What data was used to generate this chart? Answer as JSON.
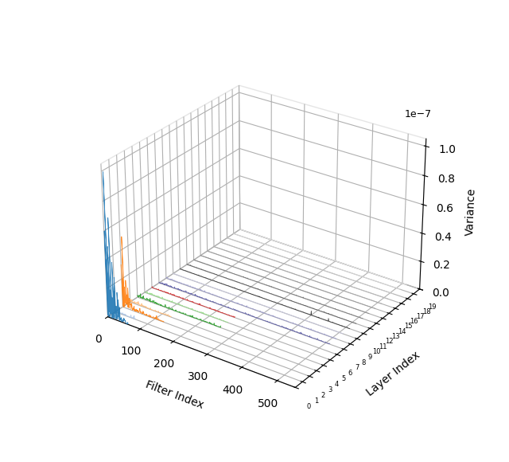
{
  "xlabel": "Filter Index",
  "ylabel": "Layer Index",
  "zlabel": "Variance",
  "xlim": [
    0,
    550
  ],
  "ylim": [
    0,
    19
  ],
  "zlim": [
    0,
    1.05e-07
  ],
  "num_layers": 20,
  "layer_filter_counts": [
    64,
    64,
    128,
    128,
    256,
    256,
    256,
    512,
    512,
    512,
    512,
    512,
    512,
    512,
    512,
    512,
    512,
    512,
    512,
    512
  ],
  "layer_colors": [
    "#1f77b4",
    "#aec7e8",
    "#ff7f0e",
    "#ffbb78",
    "#2ca02c",
    "#98df8a",
    "#d62728",
    "#5c5ca8",
    "#9c9ccc",
    "#c9c9e0",
    "#333333",
    "#555555",
    "#777777",
    "#888888",
    "#999999",
    "#aaaaaa",
    "#bbbbbb",
    "#cccccc",
    "#dddddd",
    "#eeeeee"
  ],
  "background_color": "#ffffff",
  "figsize": [
    6.4,
    5.8
  ],
  "dpi": 100,
  "elev": 28,
  "azim": -55
}
